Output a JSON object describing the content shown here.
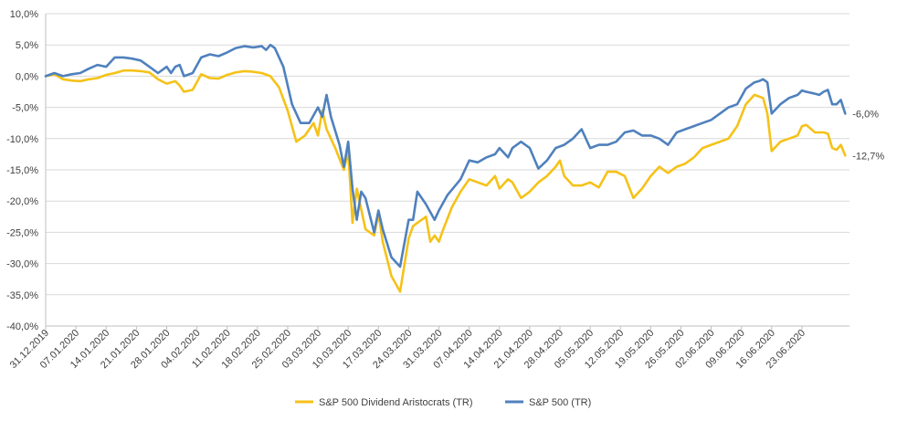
{
  "chart_data": {
    "type": "line",
    "title": "",
    "xlabel": "",
    "ylabel": "",
    "ylim": [
      -40,
      10
    ],
    "y_ticks": [
      10,
      5,
      0,
      -5,
      -10,
      -15,
      -20,
      -25,
      -30,
      -35,
      -40
    ],
    "y_tick_labels": [
      "10,0%",
      "5,0%",
      "0,0%",
      "-5,0%",
      "-10,0%",
      "-15,0%",
      "-20,0%",
      "-25,0%",
      "-30,0%",
      "-35,0%",
      "-40,0%"
    ],
    "grid": true,
    "legend_position": "bottom",
    "x_start": "31.12.2019",
    "x_end": "30.06.2020",
    "x_tick_labels": [
      "31.12.2019",
      "07.01.2020",
      "14.01.2020",
      "21.01.2020",
      "28.01.2020",
      "04.02.2020",
      "11.02.2020",
      "18.02.2020",
      "25.02.2020",
      "03.03.2020",
      "10.03.2020",
      "17.03.2020",
      "24.03.2020",
      "31.03.2020",
      "07.04.2020",
      "14.04.2020",
      "21.04.2020",
      "28.04.2020",
      "05.05.2020",
      "12.05.2020",
      "19.05.2020",
      "26.05.2020",
      "02.06.2020",
      "09.06.2020",
      "16.06.2020",
      "23.06.2020"
    ],
    "series": [
      {
        "name": "S&P 500 Dividend Aristocrats (TR)",
        "color": "#F5C218",
        "end_label": "-12,7%",
        "points": [
          [
            0,
            0
          ],
          [
            2,
            0.3
          ],
          [
            4,
            -0.5
          ],
          [
            6,
            -0.7
          ],
          [
            8,
            -0.8
          ],
          [
            10,
            -0.5
          ],
          [
            12,
            -0.3
          ],
          [
            14,
            0.2
          ],
          [
            16,
            0.5
          ],
          [
            18,
            0.9
          ],
          [
            20,
            0.9
          ],
          [
            22,
            0.8
          ],
          [
            24,
            0.6
          ],
          [
            26,
            -0.5
          ],
          [
            28,
            -1.2
          ],
          [
            30,
            -0.8
          ],
          [
            31,
            -1.5
          ],
          [
            32,
            -2.5
          ],
          [
            34,
            -2.2
          ],
          [
            36,
            0.3
          ],
          [
            38,
            -0.3
          ],
          [
            40,
            -0.4
          ],
          [
            42,
            0.2
          ],
          [
            44,
            0.6
          ],
          [
            46,
            0.8
          ],
          [
            48,
            0.7
          ],
          [
            50,
            0.5
          ],
          [
            52,
            0
          ],
          [
            54,
            -1.8
          ],
          [
            56,
            -5.5
          ],
          [
            58,
            -10.5
          ],
          [
            60,
            -9.5
          ],
          [
            62,
            -7.5
          ],
          [
            63,
            -9.5
          ],
          [
            64,
            -5.5
          ],
          [
            65,
            -8.5
          ],
          [
            67,
            -11.5
          ],
          [
            69,
            -15
          ],
          [
            70,
            -12
          ],
          [
            71,
            -23.5
          ],
          [
            72,
            -18
          ],
          [
            74,
            -24.5
          ],
          [
            76,
            -25.5
          ],
          [
            77,
            -22
          ],
          [
            78,
            -26.5
          ],
          [
            80,
            -32
          ],
          [
            82,
            -34.5
          ],
          [
            84,
            -26
          ],
          [
            85,
            -24
          ],
          [
            86,
            -23.5
          ],
          [
            88,
            -22.5
          ],
          [
            89,
            -26.5
          ],
          [
            90,
            -25.5
          ],
          [
            91,
            -26.5
          ],
          [
            92,
            -24.5
          ],
          [
            94,
            -21
          ],
          [
            96,
            -18.5
          ],
          [
            98,
            -16.5
          ],
          [
            100,
            -17
          ],
          [
            102,
            -17.5
          ],
          [
            104,
            -16
          ],
          [
            105,
            -18
          ],
          [
            107,
            -16.5
          ],
          [
            108,
            -17
          ],
          [
            110,
            -19.5
          ],
          [
            112,
            -18.5
          ],
          [
            114,
            -17
          ],
          [
            116,
            -16
          ],
          [
            118,
            -14.5
          ],
          [
            119,
            -13.5
          ],
          [
            120,
            -16
          ],
          [
            122,
            -17.5
          ],
          [
            124,
            -17.5
          ],
          [
            126,
            -17
          ],
          [
            128,
            -17.8
          ],
          [
            130,
            -15.3
          ],
          [
            132,
            -15.3
          ],
          [
            134,
            -16
          ],
          [
            136,
            -19.5
          ],
          [
            138,
            -18
          ],
          [
            140,
            -16
          ],
          [
            142,
            -14.5
          ],
          [
            144,
            -15.5
          ],
          [
            146,
            -14.5
          ],
          [
            148,
            -14
          ],
          [
            150,
            -13
          ],
          [
            152,
            -11.5
          ],
          [
            154,
            -11
          ],
          [
            156,
            -10.5
          ],
          [
            158,
            -10
          ],
          [
            160,
            -8
          ],
          [
            162,
            -4.5
          ],
          [
            164,
            -3
          ],
          [
            166,
            -3.5
          ],
          [
            167,
            -6
          ],
          [
            168,
            -12
          ],
          [
            170,
            -10.5
          ],
          [
            172,
            -10
          ],
          [
            174,
            -9.5
          ],
          [
            175,
            -8
          ],
          [
            176,
            -7.8
          ],
          [
            178,
            -9
          ],
          [
            180,
            -9
          ],
          [
            181,
            -9.2
          ],
          [
            182,
            -11.5
          ],
          [
            183,
            -11.8
          ],
          [
            184,
            -11
          ],
          [
            185,
            -12.7
          ]
        ]
      },
      {
        "name": "S&P 500 (TR)",
        "color": "#4F81BD",
        "end_label": "-6,0%",
        "points": [
          [
            0,
            0
          ],
          [
            2,
            0.5
          ],
          [
            4,
            0
          ],
          [
            6,
            0.3
          ],
          [
            8,
            0.5
          ],
          [
            10,
            1.2
          ],
          [
            12,
            1.8
          ],
          [
            14,
            1.5
          ],
          [
            16,
            3
          ],
          [
            18,
            3
          ],
          [
            20,
            2.8
          ],
          [
            22,
            2.5
          ],
          [
            24,
            1.5
          ],
          [
            26,
            0.5
          ],
          [
            28,
            1.5
          ],
          [
            29,
            0.5
          ],
          [
            30,
            1.5
          ],
          [
            31,
            1.8
          ],
          [
            32,
            0
          ],
          [
            34,
            0.5
          ],
          [
            36,
            3
          ],
          [
            38,
            3.5
          ],
          [
            40,
            3.2
          ],
          [
            42,
            3.8
          ],
          [
            44,
            4.5
          ],
          [
            46,
            4.8
          ],
          [
            48,
            4.6
          ],
          [
            50,
            4.8
          ],
          [
            51,
            4.2
          ],
          [
            52,
            5.0
          ],
          [
            53,
            4.5
          ],
          [
            55,
            1.5
          ],
          [
            57,
            -4.5
          ],
          [
            59,
            -7.5
          ],
          [
            61,
            -7.5
          ],
          [
            63,
            -5
          ],
          [
            64,
            -6.5
          ],
          [
            65,
            -3
          ],
          [
            66,
            -6.5
          ],
          [
            68,
            -11
          ],
          [
            69,
            -14.5
          ],
          [
            70,
            -10.5
          ],
          [
            71,
            -18
          ],
          [
            72,
            -23
          ],
          [
            73,
            -18.5
          ],
          [
            74,
            -19.5
          ],
          [
            76,
            -25
          ],
          [
            77,
            -21.5
          ],
          [
            78,
            -24.5
          ],
          [
            80,
            -29
          ],
          [
            82,
            -30.5
          ],
          [
            84,
            -23
          ],
          [
            85,
            -23
          ],
          [
            86,
            -18.5
          ],
          [
            88,
            -20.5
          ],
          [
            90,
            -23
          ],
          [
            91,
            -21.5
          ],
          [
            93,
            -19
          ],
          [
            96,
            -16.5
          ],
          [
            98,
            -13.5
          ],
          [
            100,
            -13.8
          ],
          [
            102,
            -13
          ],
          [
            104,
            -12.5
          ],
          [
            105,
            -11.5
          ],
          [
            107,
            -13
          ],
          [
            108,
            -11.5
          ],
          [
            110,
            -10.5
          ],
          [
            112,
            -11.5
          ],
          [
            114,
            -14.8
          ],
          [
            116,
            -13.5
          ],
          [
            118,
            -11.5
          ],
          [
            120,
            -11
          ],
          [
            122,
            -10
          ],
          [
            124,
            -8.5
          ],
          [
            126,
            -11.5
          ],
          [
            128,
            -11
          ],
          [
            130,
            -11
          ],
          [
            132,
            -10.5
          ],
          [
            134,
            -9
          ],
          [
            136,
            -8.7
          ],
          [
            138,
            -9.5
          ],
          [
            140,
            -9.5
          ],
          [
            142,
            -10
          ],
          [
            144,
            -11
          ],
          [
            146,
            -9
          ],
          [
            148,
            -8.5
          ],
          [
            150,
            -8
          ],
          [
            152,
            -7.5
          ],
          [
            154,
            -7
          ],
          [
            156,
            -6
          ],
          [
            158,
            -5
          ],
          [
            160,
            -4.5
          ],
          [
            162,
            -2
          ],
          [
            164,
            -1
          ],
          [
            165,
            -0.8
          ],
          [
            166,
            -0.5
          ],
          [
            167,
            -1
          ],
          [
            168,
            -6
          ],
          [
            170,
            -4.5
          ],
          [
            172,
            -3.5
          ],
          [
            174,
            -3
          ],
          [
            175,
            -2.3
          ],
          [
            176,
            -2.5
          ],
          [
            178,
            -2.8
          ],
          [
            179,
            -3
          ],
          [
            180,
            -2.5
          ],
          [
            181,
            -2.2
          ],
          [
            182,
            -4.5
          ],
          [
            183,
            -4.5
          ],
          [
            184,
            -3.8
          ],
          [
            185,
            -6.0
          ]
        ]
      }
    ]
  }
}
